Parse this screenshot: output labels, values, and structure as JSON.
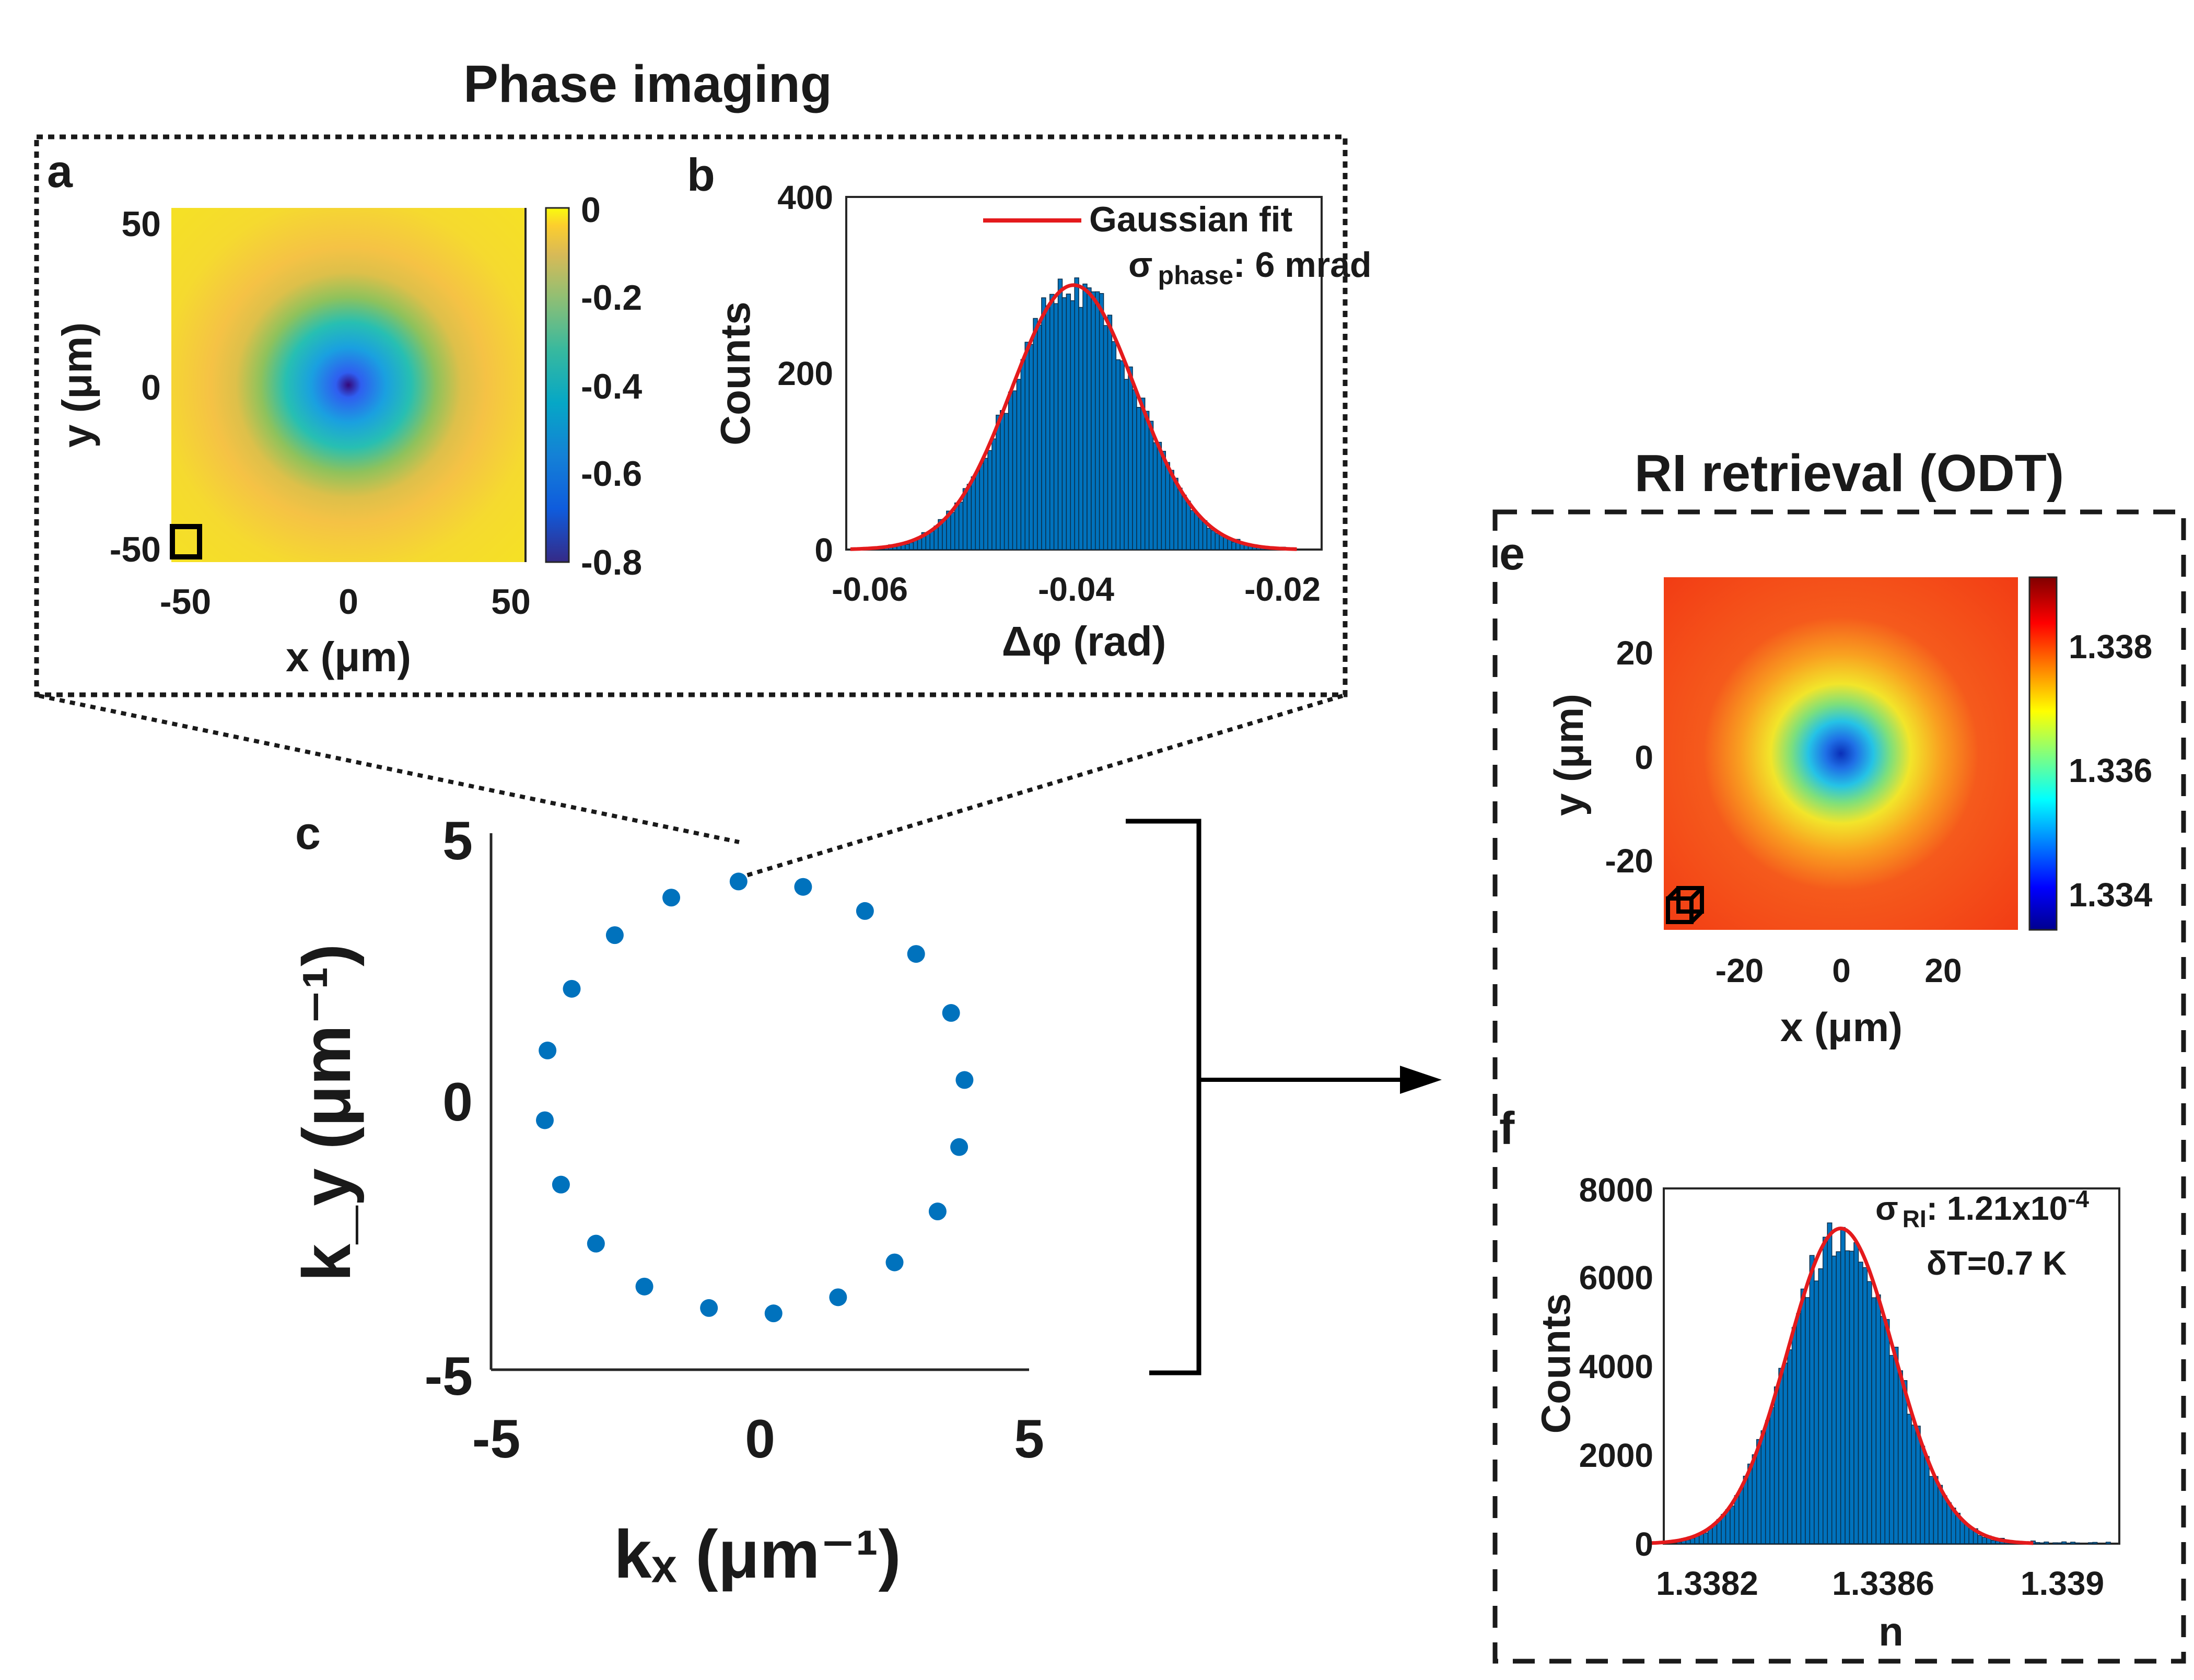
{
  "colors": {
    "accent_blue": "#0072bd",
    "fit_red": "#e41a1c",
    "axis": "#262626",
    "text": "#1a1a1a"
  },
  "phase_section": {
    "title": "Phase imaging"
  },
  "ri_section": {
    "title": "RI retrieval (ODT)"
  },
  "chart_data": [
    {
      "id": "a",
      "panel_label": "a",
      "type": "heatmap",
      "description_of_field": "radially symmetric phase dip centered at origin",
      "xlabel": "x (μm)",
      "ylabel": "y (μm)",
      "xlim": [
        -53,
        53
      ],
      "ylim": [
        -53,
        53
      ],
      "xticks": [
        "-50",
        "0",
        "50"
      ],
      "yticks": [
        "50",
        "0",
        "-50"
      ],
      "colorbar": {
        "min": -0.8,
        "max": 0,
        "ticks": [
          "0",
          "-0.2",
          "-0.4",
          "-0.6",
          "-0.8"
        ],
        "colormap": "parula"
      }
    },
    {
      "id": "b",
      "panel_label": "b",
      "type": "bar",
      "subtype": "histogram",
      "xlabel": "Δφ (rad)",
      "ylabel": "Counts",
      "xlim": [
        -0.062,
        -0.016
      ],
      "ylim": [
        0,
        400
      ],
      "xticks": [
        "-0.06",
        "-0.04",
        "-0.02"
      ],
      "yticks": [
        "400",
        "200",
        "0"
      ],
      "legend": {
        "label": "Gaussian fit",
        "position": "top-right"
      },
      "annotation": {
        "sigma": "σ",
        "sub": "phase",
        "text": ": 6 mrad"
      },
      "gaussian_fit": {
        "mean": -0.04,
        "sigma": 0.006,
        "peak": 300
      },
      "bins": {
        "start": -0.0595,
        "width": 0.0004,
        "count": 100
      }
    },
    {
      "id": "c",
      "panel_label": "c",
      "type": "scatter",
      "xlabel": "kₓ (μm⁻¹)",
      "ylabel": "k_y (μm⁻¹)",
      "xlim": [
        -5,
        5
      ],
      "ylim": [
        -5,
        5
      ],
      "xticks": [
        "-5",
        "0",
        "5"
      ],
      "yticks": [
        "5",
        "0",
        "-5"
      ],
      "x": [
        -0.4,
        0.8,
        1.95,
        2.9,
        3.55,
        3.8,
        3.7,
        3.3,
        2.5,
        1.45,
        0.25,
        -0.95,
        -2.15,
        -3.05,
        -3.7,
        -4.0,
        -3.95,
        -3.5,
        -2.7,
        -1.65
      ],
      "y": [
        4.1,
        4.0,
        3.55,
        2.75,
        1.65,
        0.4,
        -0.85,
        -2.05,
        -3.0,
        -3.65,
        -3.95,
        -3.85,
        -3.45,
        -2.65,
        -1.55,
        -0.35,
        0.95,
        2.1,
        3.1,
        3.8
      ]
    },
    {
      "id": "e",
      "panel_label": "e",
      "type": "heatmap",
      "description_of_field": "radially symmetric refractive-index dip centered at origin",
      "xlabel": "x (μm)",
      "ylabel": "y (μm)",
      "xlim": [
        -35,
        35
      ],
      "ylim": [
        -35,
        35
      ],
      "xticks": [
        "-20",
        "0",
        "20"
      ],
      "yticks": [
        "20",
        "0",
        "-20"
      ],
      "colorbar": {
        "min": 1.3332,
        "max": 1.3393,
        "ticks": [
          "1.338",
          "1.336",
          "1.334"
        ],
        "colormap": "jet"
      }
    },
    {
      "id": "f",
      "panel_label": "f",
      "type": "bar",
      "subtype": "histogram",
      "xlabel": "n",
      "ylabel": "Counts",
      "xlim": [
        1.33809,
        1.33912
      ],
      "ylim": [
        0,
        8000
      ],
      "xticks": [
        "1.3382",
        "1.3386",
        "1.339"
      ],
      "yticks": [
        "8000",
        "6000",
        "4000",
        "2000",
        "0"
      ],
      "annotation": {
        "sigma": "σ",
        "sub": "RI",
        "text": ": 1.21x10",
        "sup": "-4",
        "line2": "δT=0.7 K"
      },
      "gaussian_fit": {
        "mean": 1.33849,
        "sigma": 0.000121,
        "peak": 7100
      },
      "bins": {
        "start": 1.33812,
        "width": 1e-05,
        "count": 98
      }
    }
  ]
}
